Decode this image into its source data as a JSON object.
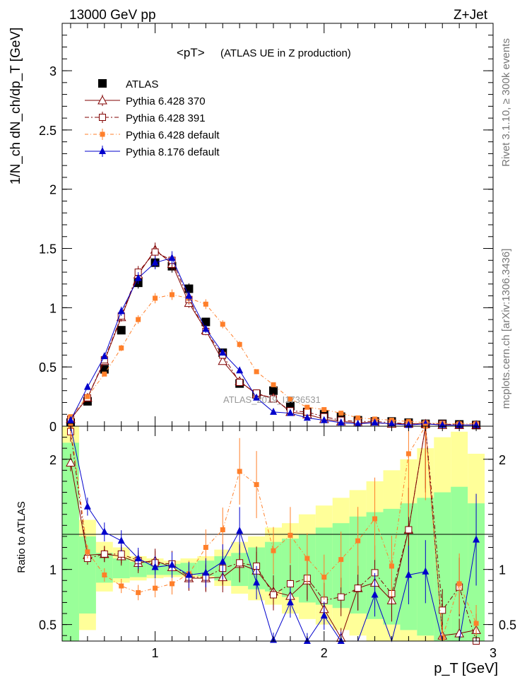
{
  "header": {
    "energy_label": "13000 GeV pp",
    "process_label": "Z+Jet",
    "rivet_label": "Rivet 3.1.10, ≥ 300k events",
    "mcplots_label": "mcplots.cern.ch [arXiv:1306.3436]"
  },
  "chart_data": [
    {
      "type": "line",
      "panel": "main",
      "title_main": "<pT>",
      "title_sub": "(ATLAS UE in Z production)",
      "ylabel": "1/N_ch dN_ch/dp_T [GeV]",
      "xlim": [
        0.45,
        3.0
      ],
      "ylim": [
        0,
        3.4
      ],
      "yticks": [
        0,
        0.5,
        1,
        1.5,
        2,
        2.5,
        3
      ],
      "watermark": "ATLAS_2019_I1736531",
      "x": [
        0.5,
        0.6,
        0.7,
        0.8,
        0.9,
        1.0,
        1.1,
        1.2,
        1.3,
        1.4,
        1.5,
        1.6,
        1.7,
        1.8,
        1.9,
        2.0,
        2.1,
        2.2,
        2.3,
        2.4,
        2.5,
        2.6,
        2.7,
        2.8,
        2.9
      ],
      "series": [
        {
          "name": "ATLAS",
          "color": "#000000",
          "marker": "square-filled",
          "values": [
            0.03,
            0.21,
            0.48,
            0.81,
            1.21,
            1.38,
            1.35,
            1.16,
            0.88,
            0.62,
            0.36,
            0.27,
            0.3,
            0.17,
            0.12,
            0.1,
            0.08,
            0.05,
            0.04,
            0.04,
            0.03,
            0.02,
            0.02,
            0.015,
            0.01
          ]
        },
        {
          "name": "Pythia 6.428 370",
          "color": "#800000",
          "marker": "triangle-open",
          "dash": "",
          "values": [
            0.06,
            0.24,
            0.55,
            0.92,
            1.28,
            1.49,
            1.37,
            1.04,
            0.81,
            0.55,
            0.38,
            0.27,
            0.24,
            0.12,
            0.1,
            0.06,
            0.04,
            0.03,
            0.03,
            0.02,
            0.02,
            0.02,
            0.01,
            0.01,
            0.01
          ]
        },
        {
          "name": "Pythia 6.428 391",
          "color": "#800000",
          "marker": "square-open",
          "dash": "6,3,2,3",
          "values": [
            0.06,
            0.24,
            0.56,
            0.93,
            1.3,
            1.47,
            1.4,
            1.07,
            0.8,
            0.6,
            0.37,
            0.28,
            0.23,
            0.13,
            0.12,
            0.08,
            0.05,
            0.04,
            0.04,
            0.03,
            0.02,
            0.02,
            0.02,
            0.01,
            0.01
          ]
        },
        {
          "name": "Pythia 6.428 default",
          "color": "#ff7f2a",
          "marker": "square-small",
          "dash": "5,3,1,3",
          "values": [
            0.08,
            0.25,
            0.44,
            0.66,
            0.9,
            1.08,
            1.11,
            1.08,
            1.03,
            0.86,
            0.69,
            0.46,
            0.35,
            0.23,
            0.16,
            0.14,
            0.11,
            0.07,
            0.06,
            0.05,
            0.04,
            0.03,
            0.02,
            0.02,
            0.02
          ]
        },
        {
          "name": "Pythia 8.176 default",
          "color": "#0000cc",
          "marker": "triangle-filled",
          "dash": "",
          "values": [
            0.05,
            0.33,
            0.59,
            0.97,
            1.25,
            1.38,
            1.42,
            1.1,
            0.82,
            0.62,
            0.47,
            0.24,
            0.12,
            0.11,
            0.07,
            0.05,
            0.03,
            0.02,
            0.03,
            0.02,
            0.01,
            0.02,
            0.01,
            0.01,
            0.01
          ]
        }
      ]
    },
    {
      "type": "line",
      "panel": "ratio",
      "ylabel": "Ratio to ATLAS",
      "xlabel": "p_T [GeV]",
      "xlim": [
        0.45,
        3.0
      ],
      "ylim": [
        0.35,
        2.3
      ],
      "yticks": [
        0.5,
        1,
        2
      ],
      "xticks": [
        1,
        2,
        3
      ],
      "x": [
        0.5,
        0.6,
        0.7,
        0.8,
        0.9,
        1.0,
        1.1,
        1.2,
        1.3,
        1.4,
        1.5,
        1.6,
        1.7,
        1.8,
        1.9,
        2.0,
        2.1,
        2.2,
        2.3,
        2.4,
        2.5,
        2.6,
        2.7,
        2.8,
        2.9
      ],
      "band_outer": [
        [
          0.3,
          2.3
        ],
        [
          0.45,
          1.45
        ],
        [
          0.8,
          1.25
        ],
        [
          0.88,
          1.2
        ],
        [
          0.9,
          1.12
        ],
        [
          0.92,
          1.1
        ],
        [
          0.93,
          1.08
        ],
        [
          0.93,
          1.1
        ],
        [
          0.92,
          1.12
        ],
        [
          0.85,
          1.18
        ],
        [
          0.78,
          1.25
        ],
        [
          0.72,
          1.3
        ],
        [
          0.68,
          1.38
        ],
        [
          0.6,
          1.42
        ],
        [
          0.55,
          1.5
        ],
        [
          0.5,
          1.58
        ],
        [
          0.45,
          1.65
        ],
        [
          0.4,
          1.72
        ],
        [
          0.35,
          1.8
        ],
        [
          0.32,
          1.9
        ],
        [
          0.3,
          2.0
        ],
        [
          0.3,
          2.1
        ],
        [
          0.3,
          2.2
        ],
        [
          0.3,
          2.25
        ],
        [
          0.3,
          2.05
        ]
      ],
      "band_inner": [
        [
          0.3,
          2.15
        ],
        [
          0.6,
          1.3
        ],
        [
          0.88,
          1.15
        ],
        [
          0.92,
          1.1
        ],
        [
          0.93,
          1.07
        ],
        [
          0.95,
          1.06
        ],
        [
          0.95,
          1.05
        ],
        [
          0.95,
          1.06
        ],
        [
          0.94,
          1.08
        ],
        [
          0.9,
          1.12
        ],
        [
          0.85,
          1.15
        ],
        [
          0.82,
          1.2
        ],
        [
          0.8,
          1.25
        ],
        [
          0.75,
          1.28
        ],
        [
          0.7,
          1.32
        ],
        [
          0.68,
          1.38
        ],
        [
          0.65,
          1.42
        ],
        [
          0.6,
          1.48
        ],
        [
          0.55,
          1.52
        ],
        [
          0.5,
          1.55
        ],
        [
          0.45,
          1.6
        ],
        [
          0.4,
          1.65
        ],
        [
          0.35,
          1.7
        ],
        [
          0.35,
          1.75
        ],
        [
          0.3,
          1.6
        ]
      ],
      "series": [
        {
          "name": "Pythia 6.428 370",
          "color": "#800000",
          "marker": "triangle-open",
          "dash": "",
          "values": [
            1.97,
            1.13,
            1.14,
            1.12,
            1.06,
            1.08,
            1.02,
            0.92,
            0.92,
            0.93,
            1.05,
            0.99,
            0.8,
            0.76,
            0.9,
            0.64,
            0.38,
            0.83,
            0.88,
            0.72,
            1.36,
            2.45,
            0.4,
            0.42,
            0.45
          ]
        },
        {
          "name": "Pythia 6.428 391",
          "color": "#800000",
          "marker": "square-open",
          "dash": "6,3,2,3",
          "values": [
            2.25,
            1.1,
            1.14,
            1.14,
            1.08,
            1.06,
            1.05,
            0.93,
            0.93,
            1.01,
            1.06,
            1.03,
            0.77,
            0.87,
            0.92,
            0.72,
            0.75,
            0.83,
            0.97,
            0.78,
            1.36,
            2.4,
            0.63,
            0.84,
            0.35
          ]
        },
        {
          "name": "Pythia 6.428 default",
          "color": "#ff7f2a",
          "marker": "square-small",
          "dash": "5,3,1,3",
          "values": [
            2.3,
            1.16,
            0.95,
            0.85,
            0.79,
            0.83,
            0.87,
            0.96,
            1.2,
            1.36,
            1.89,
            1.77,
            1.17,
            1.31,
            1.1,
            0.93,
            1.09,
            1.26,
            1.46,
            1.03,
            2.05,
            2.3,
            0.38,
            0.87,
            0.51
          ]
        },
        {
          "name": "Pythia 8.176 default",
          "color": "#0000cc",
          "marker": "triangle-filled",
          "dash": "",
          "values": [
            2.5,
            1.57,
            1.34,
            1.26,
            1.1,
            1.02,
            1.04,
            0.95,
            0.97,
            1.07,
            1.35,
            0.88,
            0.36,
            0.7,
            0.35,
            0.58,
            0.35,
            0.25,
            0.77,
            0.22,
            0.95,
            0.98,
            0.25,
            0.2,
            1.27
          ]
        }
      ]
    }
  ]
}
